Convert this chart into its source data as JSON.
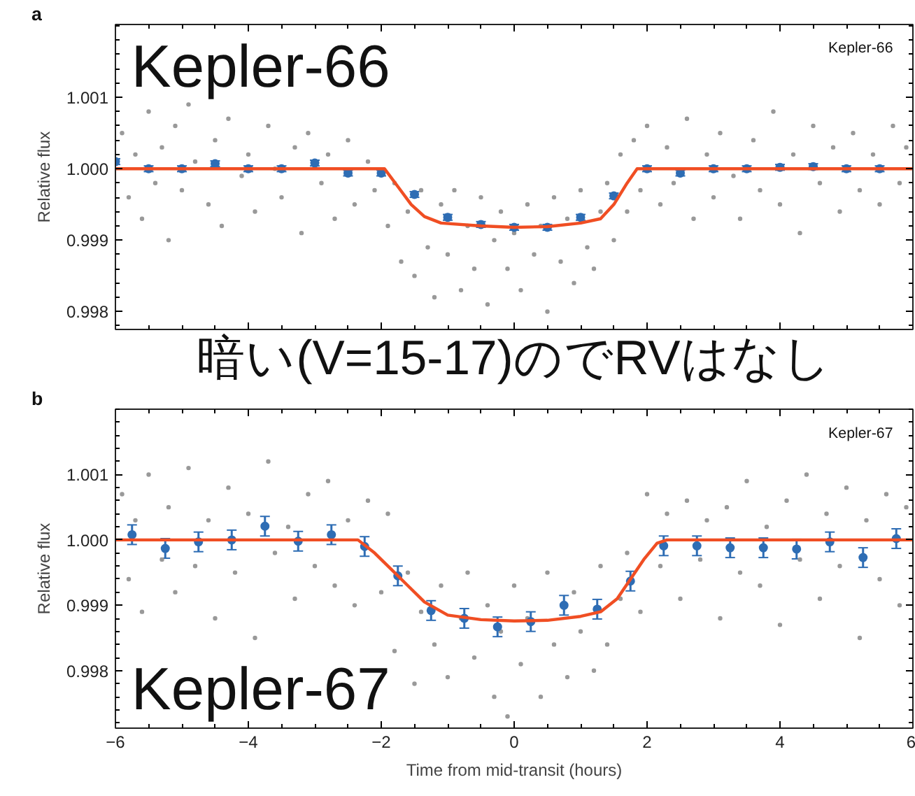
{
  "chart_data": [
    {
      "type": "scatter",
      "ylabel": "Relative flux",
      "xlim": [
        -6,
        6
      ],
      "ylim": [
        0.99775,
        1.00202
      ],
      "xticks": [
        -6,
        -4,
        -2,
        0,
        2,
        4,
        6
      ],
      "yticks": [
        {
          "value": 0.998,
          "label": "0.998"
        },
        {
          "value": 0.999,
          "label": "0.999"
        },
        {
          "value": 1.0,
          "label": "1.000"
        },
        {
          "value": 1.001,
          "label": "1.001"
        }
      ],
      "tick_labels": "y",
      "grid": false,
      "annotations": [
        "a",
        "Kepler-66",
        "Kepler-66",
        "暗い(V=15-17)のでRVはなし"
      ],
      "series": [
        {
          "marker": "circle",
          "color": "#999999",
          "x": [
            -5.9,
            -5.8,
            -5.7,
            -5.6,
            -5.5,
            -5.4,
            -5.3,
            -5.2,
            -5.1,
            -5.0,
            -4.9,
            -4.8,
            -4.6,
            -4.5,
            -4.4,
            -4.3,
            -4.1,
            -4.0,
            -3.9,
            -3.7,
            -3.6,
            -3.5,
            -3.3,
            -3.2,
            -3.1,
            -2.9,
            -2.8,
            -2.7,
            -2.5,
            -2.4,
            -2.2,
            -2.1,
            -1.9,
            -1.8,
            -1.7,
            -1.6,
            -1.5,
            -1.4,
            -1.3,
            -1.2,
            -1.1,
            -1.0,
            -0.9,
            -0.8,
            -0.7,
            -0.6,
            -0.5,
            -0.4,
            -0.3,
            -0.2,
            -0.1,
            0.0,
            0.1,
            0.2,
            0.3,
            0.4,
            0.5,
            0.6,
            0.7,
            0.8,
            0.9,
            1.0,
            1.1,
            1.2,
            1.3,
            1.4,
            1.5,
            1.6,
            1.7,
            1.8,
            1.9,
            2.0,
            2.2,
            2.3,
            2.4,
            2.6,
            2.7,
            2.9,
            3.0,
            3.1,
            3.3,
            3.4,
            3.6,
            3.7,
            3.9,
            4.0,
            4.2,
            4.3,
            4.5,
            4.6,
            4.8,
            4.9,
            5.1,
            5.2,
            5.4,
            5.5,
            5.7,
            5.8,
            5.9
          ],
          "values": [
            1.0005,
            0.9996,
            1.0002,
            0.9993,
            1.0008,
            0.9998,
            1.0003,
            0.999,
            1.0006,
            0.9997,
            1.0009,
            1.0001,
            0.9995,
            1.0004,
            0.9992,
            1.0007,
            0.9999,
            1.0002,
            0.9994,
            1.0006,
            1.0,
            0.9996,
            1.0003,
            0.9991,
            1.0005,
            0.9998,
            1.0002,
            0.9993,
            1.0004,
            0.9995,
            1.0001,
            0.9997,
            0.9992,
            0.9998,
            0.9987,
            0.9994,
            0.9985,
            0.9997,
            0.9989,
            0.9982,
            0.9995,
            0.9988,
            0.9997,
            0.9983,
            0.9992,
            0.9986,
            0.9996,
            0.9981,
            0.999,
            0.9994,
            0.9986,
            0.9991,
            0.9983,
            0.9995,
            0.9988,
            0.9992,
            0.998,
            0.9996,
            0.9987,
            0.9993,
            0.9984,
            0.9997,
            0.9989,
            0.9986,
            0.9994,
            0.9998,
            0.999,
            1.0002,
            0.9994,
            1.0004,
            0.9997,
            1.0006,
            0.9995,
            1.0003,
            0.9998,
            1.0007,
            0.9993,
            1.0002,
            0.9996,
            1.0005,
            0.9999,
            0.9993,
            1.0004,
            0.9997,
            1.0008,
            0.9995,
            1.0002,
            0.9991,
            1.0006,
            0.9998,
            1.0003,
            0.9994,
            1.0005,
            0.9997,
            1.0002,
            0.9995,
            1.0006,
            0.9998,
            1.0003
          ]
        },
        {
          "marker": "circle",
          "color": "#2e6db4",
          "x": [
            -6.0,
            -5.5,
            -5.0,
            -4.5,
            -4.0,
            -3.5,
            -3.0,
            -2.5,
            -2.0,
            -1.5,
            -1.0,
            -0.5,
            0.0,
            0.5,
            1.0,
            1.5,
            2.0,
            2.5,
            3.0,
            3.5,
            4.0,
            4.5,
            5.0,
            5.5
          ],
          "values": [
            1.0001,
            1.0,
            1.0,
            1.00007,
            1.0,
            1.0,
            1.00008,
            0.99994,
            0.99994,
            0.99964,
            0.99932,
            0.99922,
            0.99918,
            0.99918,
            0.99932,
            0.99962,
            1.0,
            0.99994,
            1.0,
            1.0,
            1.00002,
            1.00003,
            1.0,
            1.0
          ],
          "errors": [
            4e-05,
            4e-05,
            4e-05,
            4e-05,
            4e-05,
            4e-05,
            4e-05,
            4e-05,
            4e-05,
            4e-05,
            4e-05,
            4e-05,
            4e-05,
            4e-05,
            4e-05,
            4e-05,
            4e-05,
            4e-05,
            4e-05,
            4e-05,
            4e-05,
            4e-05,
            4e-05,
            4e-05
          ]
        },
        {
          "type": "line",
          "color": "#f04e23",
          "x": [
            -6,
            -1.95,
            -1.75,
            -1.55,
            -1.35,
            -1.1,
            -0.5,
            0,
            0.5,
            1.0,
            1.3,
            1.5,
            1.7,
            1.85,
            6
          ],
          "values": [
            1.0,
            1.0,
            0.99975,
            0.9995,
            0.99933,
            0.99924,
            0.9992,
            0.99918,
            0.99919,
            0.99924,
            0.9993,
            0.9995,
            0.9998,
            1.0,
            1.0
          ]
        }
      ]
    },
    {
      "type": "scatter",
      "xlabel": "Time from mid-transit (hours)",
      "ylabel": "Relative flux",
      "xlim": [
        -6,
        6
      ],
      "ylim": [
        0.99712,
        1.002
      ],
      "xticks": [
        {
          "value": -6,
          "label": "−6"
        },
        {
          "value": -4,
          "label": "−4"
        },
        {
          "value": -2,
          "label": "−2"
        },
        0,
        2,
        4,
        6
      ],
      "yticks": [
        {
          "value": 0.998,
          "label": "0.998"
        },
        {
          "value": 0.999,
          "label": "0.999"
        },
        {
          "value": 1.0,
          "label": "1.000"
        },
        {
          "value": 1.001,
          "label": "1.001"
        }
      ],
      "grid": false,
      "annotations": [
        "b",
        "Kepler-67",
        "Kepler-67"
      ],
      "series": [
        {
          "marker": "circle",
          "color": "#999999",
          "x": [
            -5.9,
            -5.8,
            -5.7,
            -5.6,
            -5.5,
            -5.3,
            -5.2,
            -5.1,
            -4.9,
            -4.8,
            -4.6,
            -4.5,
            -4.3,
            -4.2,
            -4.0,
            -3.9,
            -3.7,
            -3.6,
            -3.4,
            -3.3,
            -3.1,
            -3.0,
            -2.8,
            -2.7,
            -2.5,
            -2.4,
            -2.2,
            -2.0,
            -1.9,
            -1.8,
            -1.6,
            -1.5,
            -1.4,
            -1.2,
            -1.1,
            -1.0,
            -0.8,
            -0.7,
            -0.6,
            -0.4,
            -0.3,
            -0.2,
            -0.1,
            0.0,
            0.1,
            0.2,
            0.4,
            0.5,
            0.6,
            0.8,
            0.9,
            1.0,
            1.2,
            1.3,
            1.4,
            1.6,
            1.7,
            1.9,
            2.0,
            2.2,
            2.3,
            2.5,
            2.6,
            2.8,
            2.9,
            3.1,
            3.2,
            3.4,
            3.5,
            3.7,
            3.8,
            4.0,
            4.1,
            4.3,
            4.4,
            4.6,
            4.7,
            4.9,
            5.0,
            5.2,
            5.3,
            5.5,
            5.6,
            5.8,
            5.9
          ],
          "values": [
            1.0007,
            0.9994,
            1.0003,
            0.9989,
            1.001,
            0.9997,
            1.0005,
            0.9992,
            1.0011,
            0.9996,
            1.0003,
            0.9988,
            1.0008,
            0.9995,
            1.0004,
            0.9985,
            1.0012,
            0.9998,
            1.0002,
            0.9991,
            1.0007,
            0.9996,
            1.0009,
            0.9993,
            1.0003,
            0.999,
            1.0006,
            0.9992,
            1.0004,
            0.9983,
            0.9995,
            0.9978,
            0.9989,
            0.9984,
            0.9993,
            0.9979,
            0.9988,
            0.9995,
            0.9982,
            0.999,
            0.9976,
            0.9986,
            0.9973,
            0.9993,
            0.9981,
            0.9988,
            0.9976,
            0.9995,
            0.9984,
            0.9979,
            0.9992,
            0.9986,
            0.998,
            0.9996,
            0.9984,
            0.9991,
            0.9998,
            0.9989,
            1.0007,
            0.9996,
            1.0004,
            0.9991,
            1.0006,
            0.9997,
            1.0003,
            0.9988,
            1.0005,
            0.9995,
            1.0009,
            0.9993,
            1.0002,
            0.9987,
            1.0006,
            0.9997,
            1.001,
            0.9991,
            1.0004,
            0.9996,
            1.0008,
            0.9985,
            1.0003,
            0.9994,
            1.0007,
            0.999,
            1.0005
          ]
        },
        {
          "marker": "circle",
          "color": "#2e6db4",
          "x": [
            -5.75,
            -5.25,
            -4.75,
            -4.25,
            -3.75,
            -3.25,
            -2.75,
            -2.25,
            -1.75,
            -1.25,
            -0.75,
            -0.25,
            0.25,
            0.75,
            1.25,
            1.75,
            2.25,
            2.75,
            3.25,
            3.75,
            4.25,
            4.75,
            5.25,
            5.75
          ],
          "values": [
            1.00008,
            0.99987,
            0.99997,
            1.0,
            1.00021,
            0.99998,
            1.00008,
            0.9999,
            0.99945,
            0.99892,
            0.9988,
            0.99867,
            0.99875,
            0.999,
            0.99894,
            0.99937,
            0.99991,
            0.99991,
            0.99988,
            0.99988,
            0.99986,
            0.99997,
            0.99973,
            1.00002
          ],
          "errors": [
            0.00015,
            0.00015,
            0.00015,
            0.00015,
            0.00015,
            0.00015,
            0.00015,
            0.00015,
            0.00015,
            0.00015,
            0.00015,
            0.00015,
            0.00015,
            0.00015,
            0.00015,
            0.00015,
            0.00015,
            0.00015,
            0.00015,
            0.00015,
            0.00015,
            0.00015,
            0.00015,
            0.00015
          ]
        },
        {
          "type": "line",
          "color": "#f04e23",
          "x": [
            -6,
            -2.35,
            -2.1,
            -1.85,
            -1.6,
            -1.35,
            -1.0,
            -0.5,
            0,
            0.5,
            1.0,
            1.3,
            1.55,
            1.75,
            1.95,
            2.15,
            2.3,
            6
          ],
          "values": [
            1.0,
            1.0,
            0.9998,
            0.99955,
            0.9993,
            0.99905,
            0.99885,
            0.99878,
            0.99876,
            0.99877,
            0.99883,
            0.9989,
            0.9991,
            0.9994,
            0.9997,
            0.99995,
            1.0,
            1.0
          ]
        }
      ]
    }
  ]
}
